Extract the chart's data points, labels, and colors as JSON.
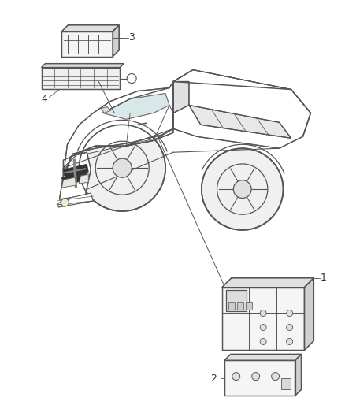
{
  "bg_color": "#ffffff",
  "line_color": "#555555",
  "label_color": "#333333",
  "figsize": [
    4.38,
    5.33
  ],
  "dpi": 100,
  "label_fontsize": 9,
  "lw": 0.9
}
